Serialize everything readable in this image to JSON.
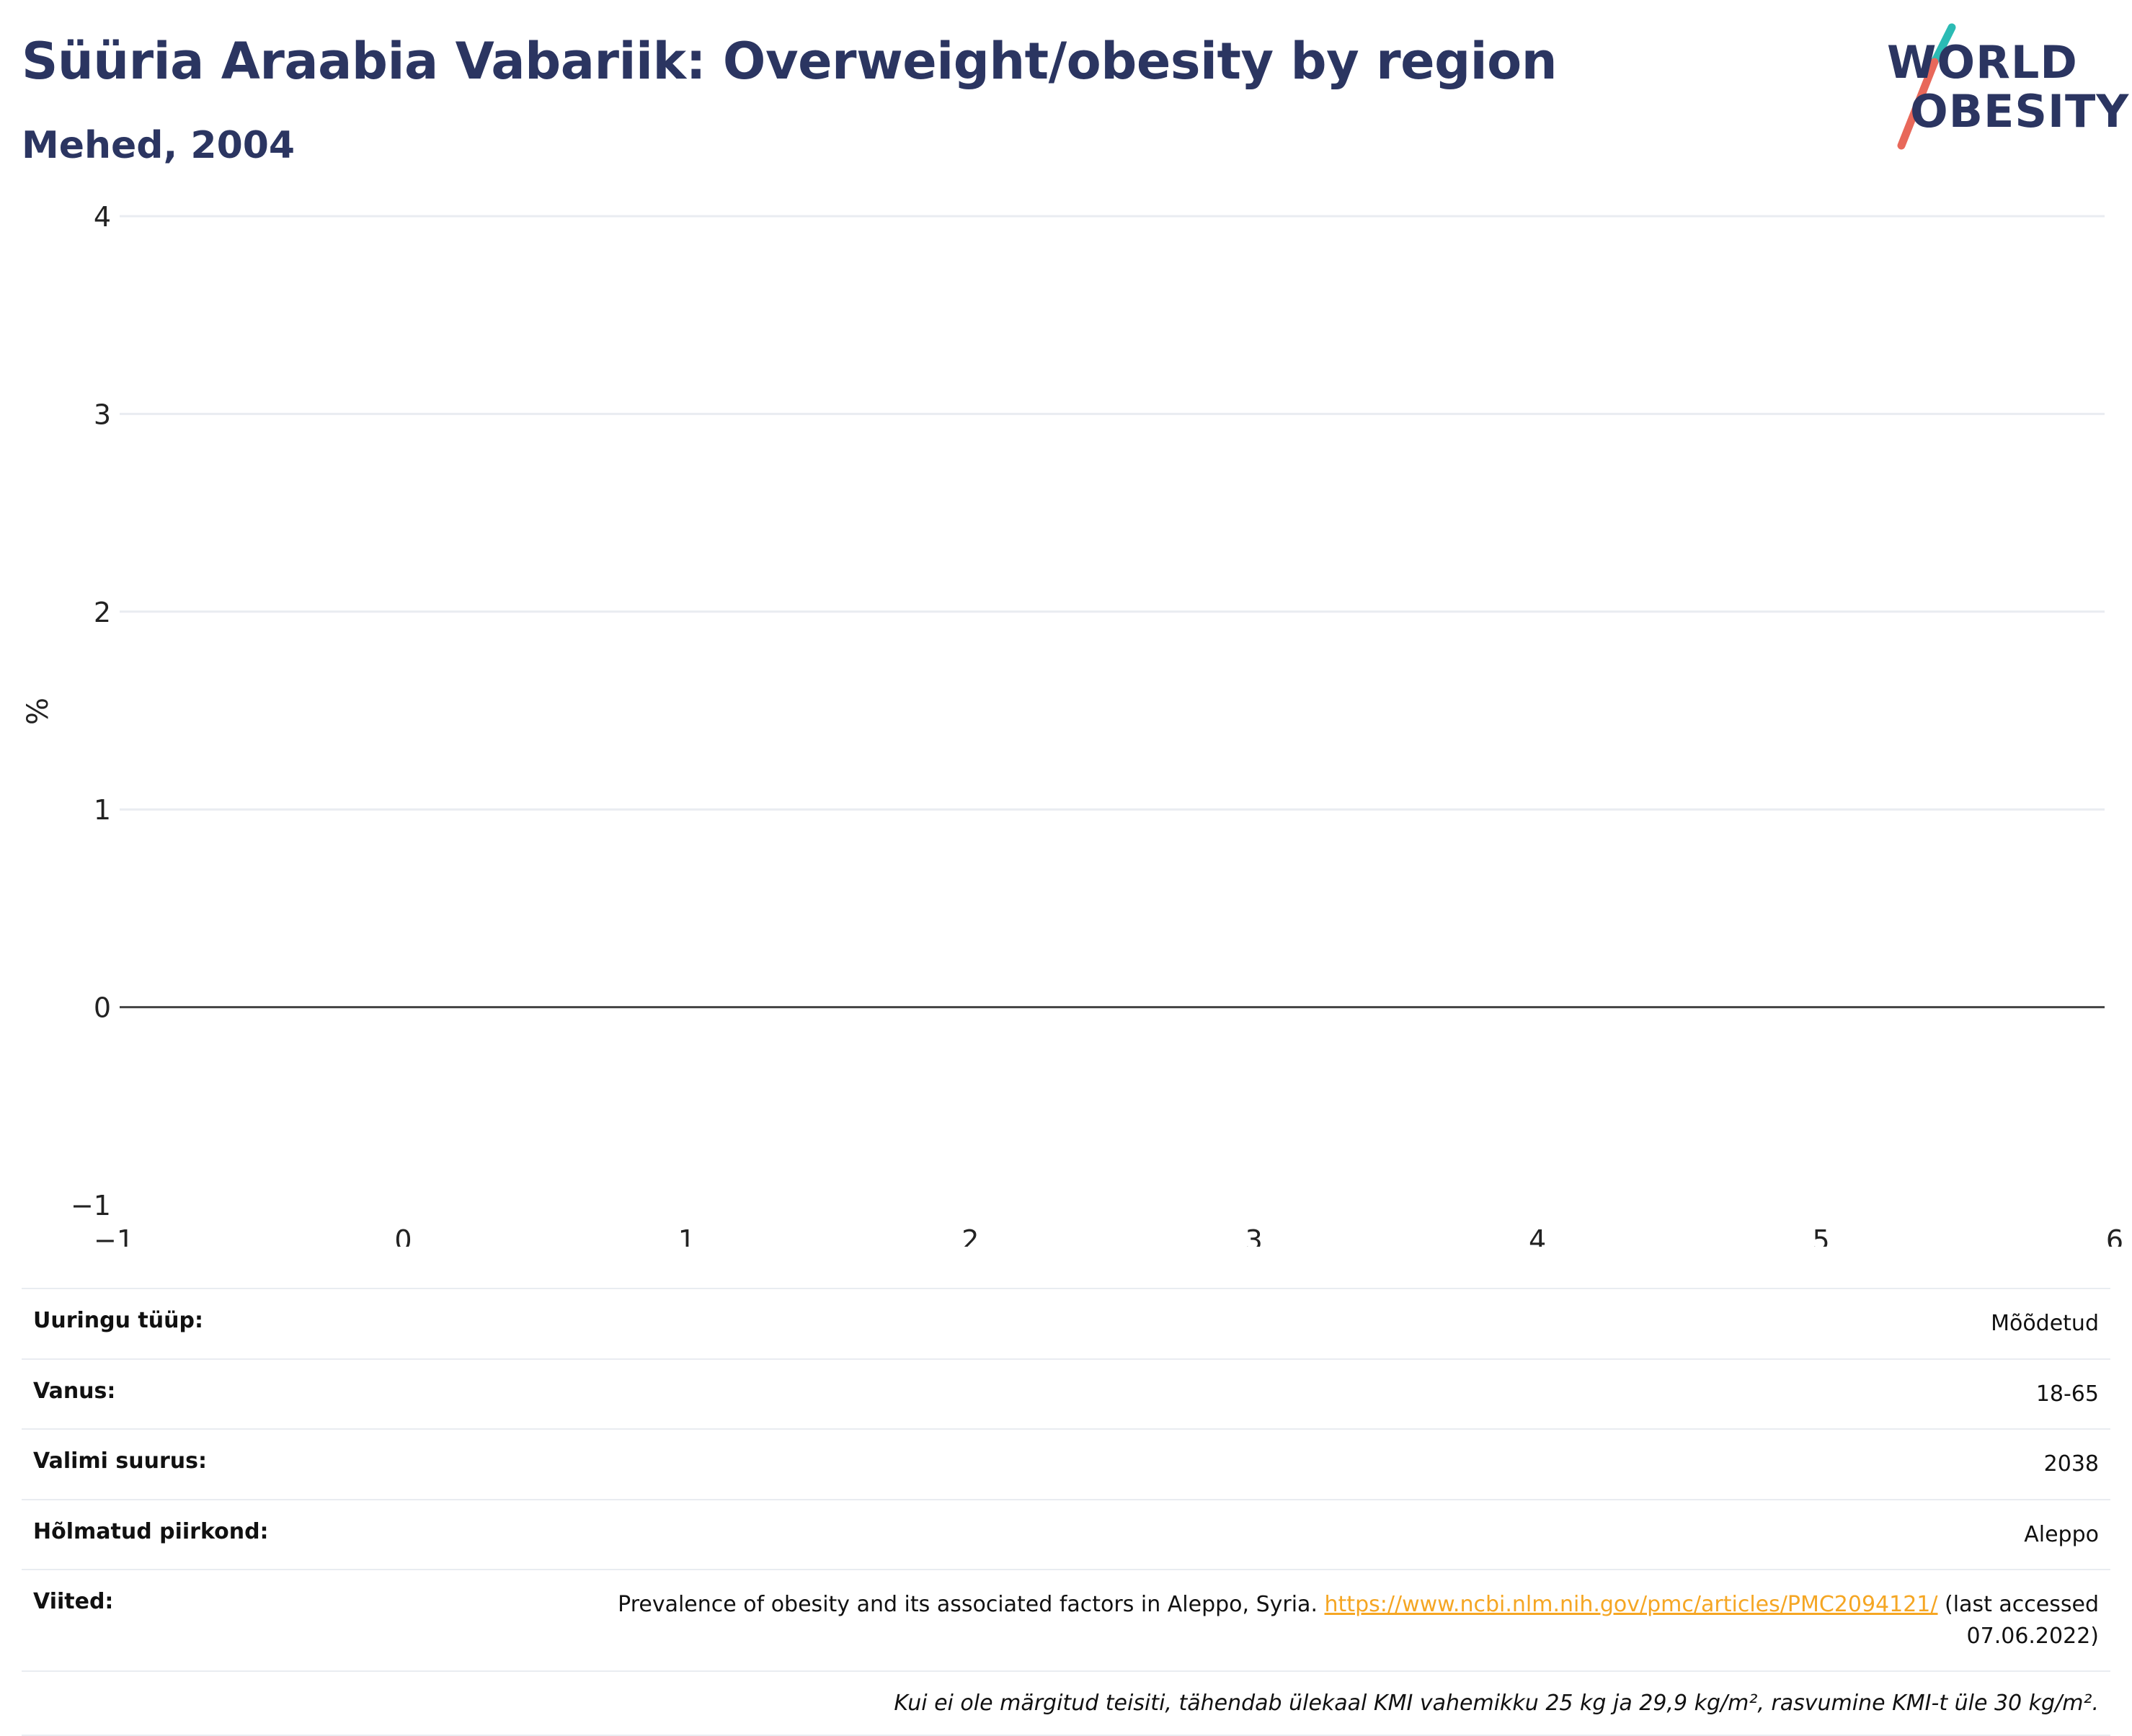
{
  "header": {
    "title": "Süüria Araabia Vabariik: Overweight/obesity by region",
    "subtitle": "Mehed, 2004"
  },
  "logo": {
    "line1": "WORLD",
    "line2": "OBESITY",
    "accent_teal": "#2bbbb4",
    "accent_red": "#e8685a"
  },
  "chart_data": {
    "type": "bar",
    "title": "Süüria Araabia Vabariik: Overweight/obesity by region",
    "subtitle": "Mehed, 2004",
    "ylabel": "%",
    "xlabel": "",
    "xlim": [
      -1,
      6
    ],
    "ylim": [
      -1,
      4
    ],
    "x_ticks": [
      "−1",
      "0",
      "1",
      "2",
      "3",
      "4",
      "5",
      "6"
    ],
    "y_ticks": [
      "−1",
      "0",
      "1",
      "2",
      "3",
      "4"
    ],
    "series": [],
    "grid": true,
    "legend": "none"
  },
  "info": {
    "rows": [
      {
        "label": "Uuringu tüüp:",
        "value": "Mõõdetud"
      },
      {
        "label": "Vanus:",
        "value": "18-65"
      },
      {
        "label": "Valimi suurus:",
        "value": "2038"
      },
      {
        "label": "Hõlmatud piirkond:",
        "value": "Aleppo"
      }
    ],
    "ref_label": "Viited:",
    "ref_text": "Prevalence of obesity and its associated factors in Aleppo, Syria.",
    "ref_link": "https://www.ncbi.nlm.nih.gov/pmc/articles/PMC2094121/",
    "ref_suffix": "(last accessed 07.06.2022)",
    "note": "Kui ei ole märgitud teisiti, tähendab ülekaal KMI vahemikku 25 kg ja 29,9 kg/m², rasvumine KMI-t üle 30 kg/m²."
  },
  "colors": {
    "title": "#2b3561",
    "grid": "#e9ecf1",
    "zero_line": "#444444",
    "link": "#f5a623"
  }
}
